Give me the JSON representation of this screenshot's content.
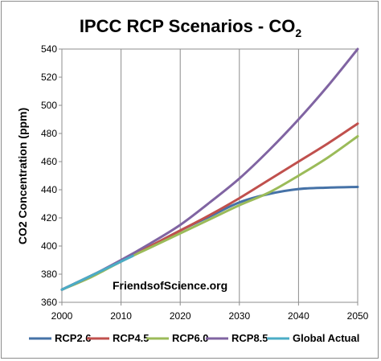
{
  "chart_data": {
    "type": "line",
    "title_main": "IPCC RCP Scenarios - CO",
    "title_subscript": "2",
    "xlabel": "",
    "ylabel": "CO2 Concentration (ppm)",
    "xlim": [
      2000,
      2050
    ],
    "ylim": [
      360,
      540
    ],
    "x_ticks": [
      2000,
      2010,
      2020,
      2030,
      2040,
      2050
    ],
    "y_ticks": [
      360,
      380,
      400,
      420,
      440,
      460,
      480,
      500,
      520,
      540
    ],
    "grid": "vertical-only",
    "legend_position": "bottom",
    "annotation": "FriendsofScience.org",
    "series": [
      {
        "name": "RCP2.6",
        "color": "#4572a7",
        "x": [
          2000,
          2005,
          2010,
          2015,
          2020,
          2025,
          2030,
          2035,
          2040,
          2045,
          2050
        ],
        "values": [
          369,
          379,
          389,
          400,
          411,
          421,
          431,
          437,
          440.5,
          441.5,
          442
        ]
      },
      {
        "name": "RCP4.5",
        "color": "#c0504d",
        "x": [
          2000,
          2005,
          2010,
          2015,
          2020,
          2025,
          2030,
          2035,
          2040,
          2045,
          2050
        ],
        "values": [
          369,
          379,
          389,
          400,
          411,
          422,
          434,
          447,
          460,
          473,
          487
        ]
      },
      {
        "name": "RCP6.0",
        "color": "#9bbb59",
        "x": [
          2000,
          2005,
          2010,
          2015,
          2020,
          2025,
          2030,
          2035,
          2040,
          2045,
          2050
        ],
        "values": [
          369,
          378,
          389,
          399,
          409,
          419,
          429,
          438,
          450,
          463,
          478
        ]
      },
      {
        "name": "RCP8.5",
        "color": "#8064a2",
        "x": [
          2000,
          2005,
          2010,
          2015,
          2020,
          2025,
          2030,
          2035,
          2040,
          2045,
          2050
        ],
        "values": [
          369,
          379,
          390,
          402,
          415,
          431,
          448,
          468,
          490,
          514,
          540
        ]
      },
      {
        "name": "Global Actual",
        "color": "#4bacc6",
        "x": [
          2000,
          2002,
          2004,
          2006,
          2008,
          2010,
          2012
        ],
        "values": [
          369,
          373,
          377,
          381,
          385,
          389,
          393
        ]
      }
    ]
  }
}
